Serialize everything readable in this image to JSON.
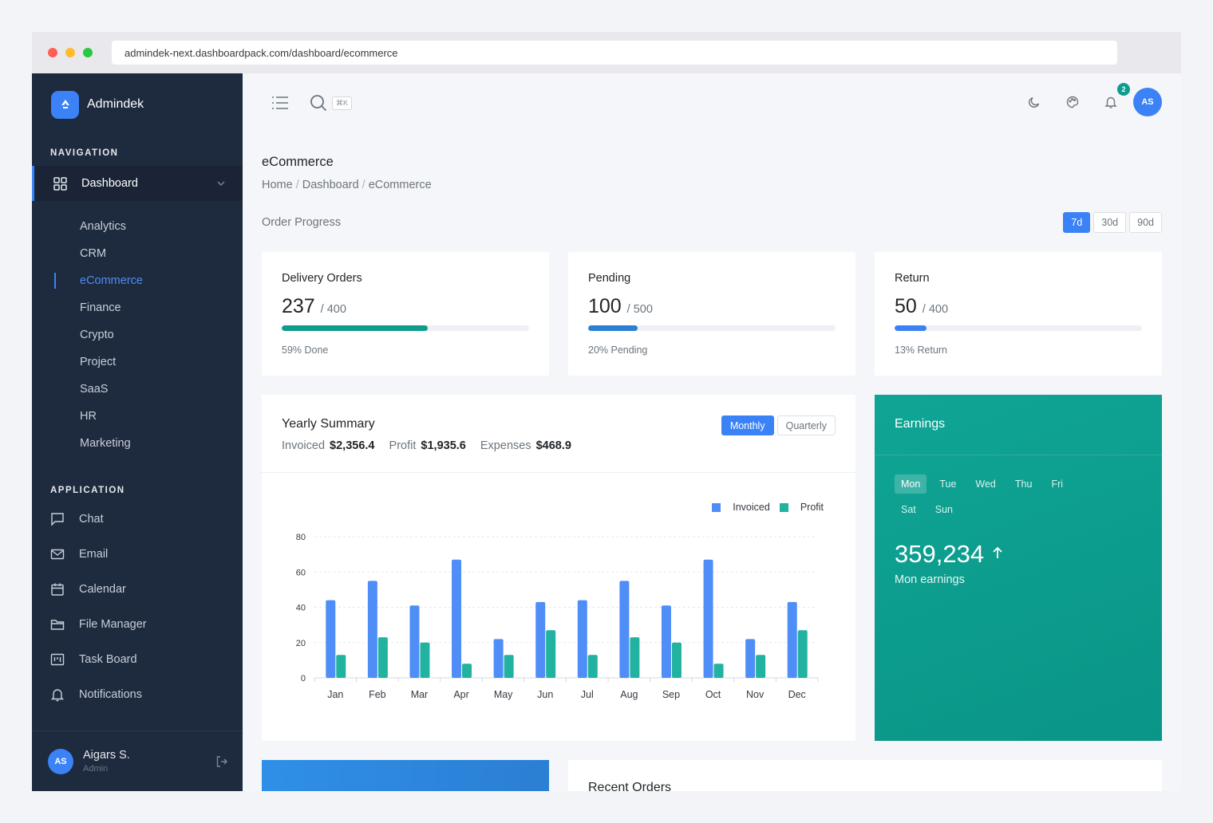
{
  "browser": {
    "url": "admindek-next.dashboardpack.com/dashboard/ecommerce",
    "dots": [
      "#fd5f57",
      "#febc2e",
      "#28c840"
    ]
  },
  "sidebar": {
    "brand": "Admindek",
    "nav_title": "NAVIGATION",
    "dashboard_label": "Dashboard",
    "sub_items": [
      "Analytics",
      "CRM",
      "eCommerce",
      "Finance",
      "Crypto",
      "Project",
      "SaaS",
      "HR",
      "Marketing"
    ],
    "active_sub": "eCommerce",
    "app_title": "APPLICATION",
    "app_items": [
      {
        "label": "Chat",
        "icon": "chat-icon"
      },
      {
        "label": "Email",
        "icon": "mail-icon"
      },
      {
        "label": "Calendar",
        "icon": "calendar-icon"
      },
      {
        "label": "File Manager",
        "icon": "folder-icon"
      },
      {
        "label": "Task Board",
        "icon": "kanban-icon"
      },
      {
        "label": "Notifications",
        "icon": "bell-icon"
      }
    ],
    "user": {
      "initials": "AS",
      "name": "Aigars S.",
      "role": "Admin"
    }
  },
  "topbar": {
    "shortcut": "⌘K",
    "notification_count": "2",
    "avatar_initials": "AS"
  },
  "page": {
    "title": "eCommerce",
    "breadcrumb": [
      "Home",
      "Dashboard",
      "eCommerce"
    ],
    "section_label": "Order Progress",
    "ranges": [
      "7d",
      "30d",
      "90d"
    ],
    "active_range": "7d"
  },
  "stats": [
    {
      "title": "Delivery Orders",
      "value": "237",
      "total": "/ 400",
      "progress": 59,
      "footer": "59% Done",
      "color": "#0f9b8e"
    },
    {
      "title": "Pending",
      "value": "100",
      "total": "/ 500",
      "progress": 20,
      "footer": "20% Pending",
      "color": "#2b7fd4"
    },
    {
      "title": "Return",
      "value": "50",
      "total": "/ 400",
      "progress": 13,
      "footer": "13% Return",
      "color": "#3b82f6"
    }
  ],
  "yearly": {
    "title": "Yearly Summary",
    "invoiced_label": "Invoiced",
    "invoiced_value": "$2,356.4",
    "profit_label": "Profit",
    "profit_value": "$1,935.6",
    "expenses_label": "Expenses",
    "expenses_value": "$468.9",
    "toggle": [
      "Monthly",
      "Quarterly"
    ],
    "active_toggle": "Monthly"
  },
  "chart_data": {
    "type": "bar",
    "categories": [
      "Jan",
      "Feb",
      "Mar",
      "Apr",
      "May",
      "Jun",
      "Jul",
      "Aug",
      "Sep",
      "Oct",
      "Nov",
      "Dec"
    ],
    "series": [
      {
        "name": "Invoiced",
        "color": "#4f8ef7",
        "values": [
          44,
          55,
          41,
          67,
          22,
          43,
          44,
          55,
          41,
          67,
          22,
          43
        ]
      },
      {
        "name": "Profit",
        "color": "#22b3a0",
        "values": [
          13,
          23,
          20,
          8,
          13,
          27,
          13,
          23,
          20,
          8,
          13,
          27
        ]
      }
    ],
    "yticks": [
      0,
      20,
      40,
      60,
      80
    ],
    "ylim": [
      0,
      80
    ],
    "legend": "top-right",
    "grid": true
  },
  "earnings": {
    "title": "Earnings",
    "days": [
      "Mon",
      "Tue",
      "Wed",
      "Thu",
      "Fri",
      "Sat",
      "Sun"
    ],
    "active_day": "Mon",
    "value": "359,234",
    "label": "Mon earnings"
  },
  "recent": {
    "title": "Recent Orders"
  }
}
